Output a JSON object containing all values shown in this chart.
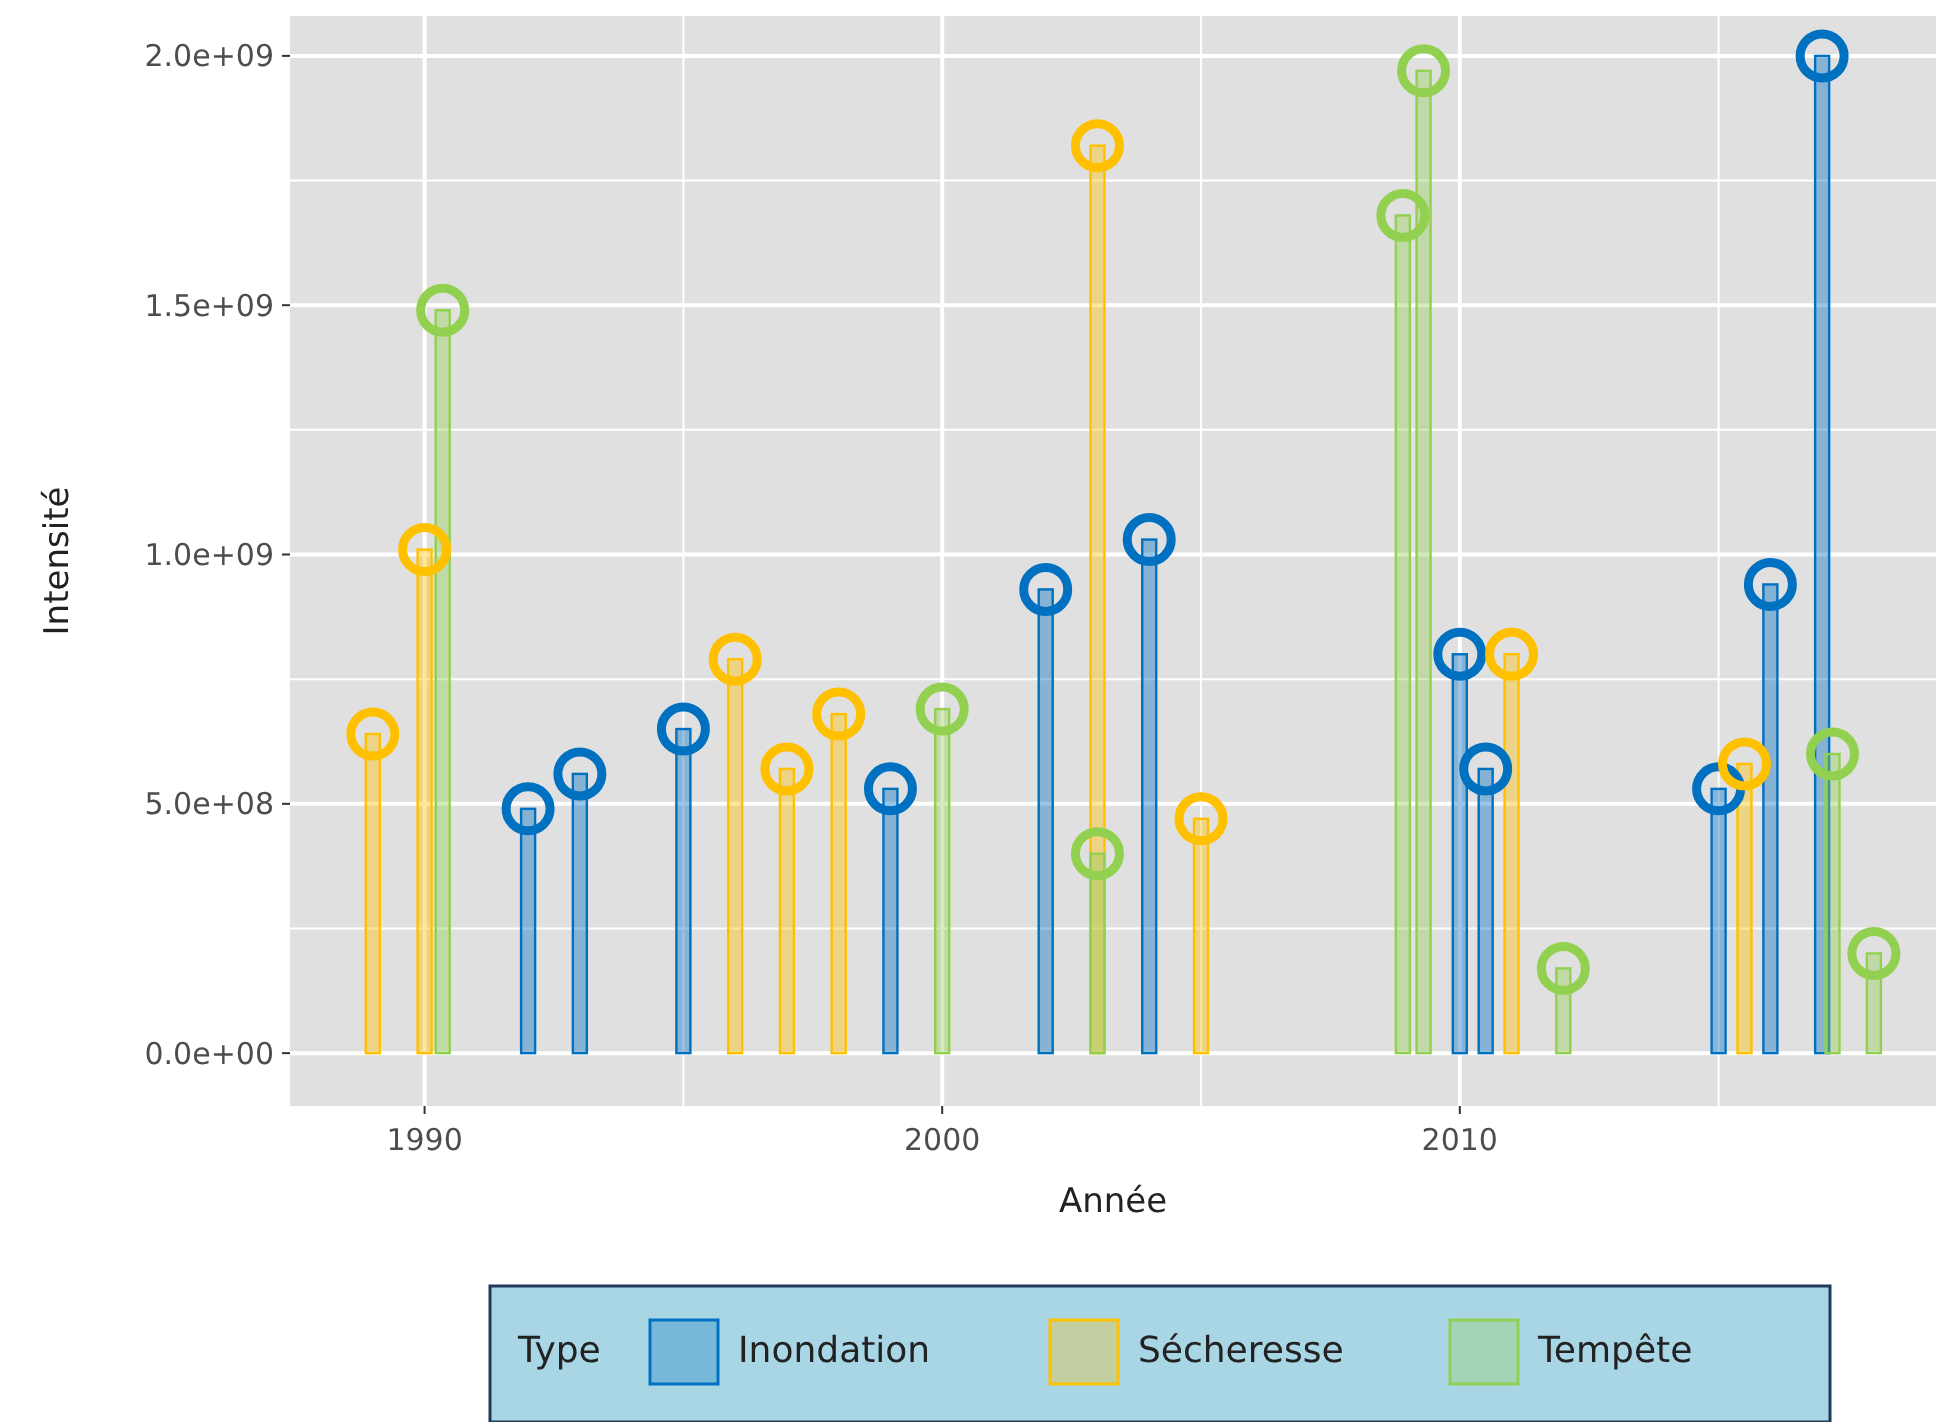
{
  "chart_data": {
    "type": "bar",
    "xlabel": "Année",
    "ylabel": "Intensité",
    "legend_title": "Type",
    "legend": "bottom",
    "grid": true,
    "marker": "circle",
    "xlim": [
      1987.4,
      2019.2
    ],
    "xticks": [
      1990,
      2000,
      2010
    ],
    "ylim": [
      -106000000,
      2080000000
    ],
    "yticks": [
      {
        "value": 0,
        "label": "0.0e+00"
      },
      {
        "value": 500000000,
        "label": "5.0e+08"
      },
      {
        "value": 1000000000,
        "label": "1.0e+09"
      },
      {
        "value": 1500000000,
        "label": "1.5e+09"
      },
      {
        "value": 2000000000,
        "label": "2.0e+09"
      }
    ],
    "series": [
      {
        "name": "Inondation",
        "color": "#0070c0",
        "x": [
          1992,
          1993,
          1995,
          1999,
          2002,
          2004,
          2010,
          2010.5,
          2015,
          2016,
          2017
        ],
        "values": [
          490000000,
          560000000,
          650000000,
          530000000,
          930000000,
          1030000000,
          800000000,
          570000000,
          530000000,
          940000000,
          2000000000
        ]
      },
      {
        "name": "Sécheresse",
        "color": "#ffc000",
        "x": [
          1989,
          1990,
          1996,
          1997,
          1998,
          2003,
          2005,
          2011,
          2015.5
        ],
        "values": [
          640000000,
          1010000000,
          790000000,
          570000000,
          680000000,
          1820000000,
          470000000,
          800000000,
          580000000
        ]
      },
      {
        "name": "Tempête",
        "color": "#92d050",
        "x": [
          1990.35,
          2000,
          2003,
          2008.9,
          2009.3,
          2012,
          2017.2,
          2018
        ],
        "values": [
          1490000000,
          690000000,
          400000000,
          1680000000,
          1970000000,
          170000000,
          600000000,
          200000000
        ]
      },
      {
        "type": "scatter",
        "color": "#0070c0",
        "x": [
          1992,
          1993,
          1995,
          1999,
          2002,
          2004,
          2010,
          2010.5,
          2015,
          2016,
          2017
        ],
        "values": [
          490000000,
          560000000,
          650000000,
          530000000,
          930000000,
          1030000000,
          800000000,
          570000000,
          530000000,
          940000000,
          2000000000
        ]
      },
      {
        "type": "scatter",
        "color": "#ffc000",
        "x": [
          1989,
          1990,
          1996,
          1997,
          1998,
          2003,
          2005,
          2011,
          2015.5
        ],
        "values": [
          640000000,
          1010000000,
          790000000,
          570000000,
          680000000,
          1820000000,
          470000000,
          800000000,
          580000000
        ]
      },
      {
        "type": "scatter",
        "color": "#92d050",
        "x": [
          1990.35,
          2000,
          2003,
          2008.9,
          2009.3,
          2012,
          2017.2,
          2018
        ],
        "values": [
          1490000000,
          690000000,
          400000000,
          1680000000,
          1970000000,
          170000000,
          600000000,
          200000000
        ]
      }
    ]
  }
}
